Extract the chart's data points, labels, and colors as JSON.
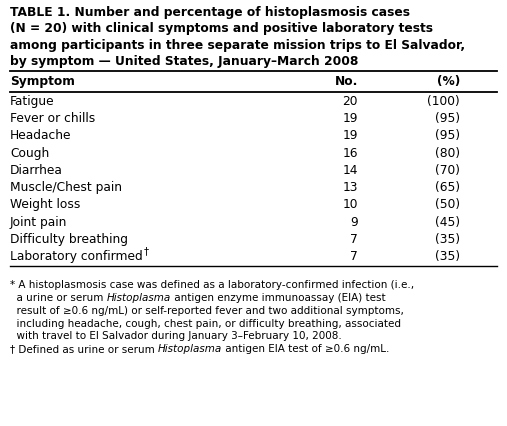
{
  "title_lines": [
    "TABLE 1. Number and percentage of histoplasmosis cases",
    "(N = 20) with clinical symptoms and positive laboratory tests",
    "among participants in three separate mission trips to El Salvador,",
    "by symptom — United States, January–March 2008"
  ],
  "col_headers": [
    "Symptom",
    "No.",
    "(%)"
  ],
  "rows": [
    [
      "Fatigue",
      "20",
      "(100)"
    ],
    [
      "Fever or chills",
      "19",
      "(95)"
    ],
    [
      "Headache",
      "19",
      "(95)"
    ],
    [
      "Cough",
      "16",
      "(80)"
    ],
    [
      "Diarrhea",
      "14",
      "(70)"
    ],
    [
      "Muscle/Chest pain",
      "13",
      "(65)"
    ],
    [
      "Weight loss",
      "10",
      "(50)"
    ],
    [
      "Joint pain",
      "9",
      "(45)"
    ],
    [
      "Difficulty breathing",
      "7",
      "(35)"
    ],
    [
      "Laboratory confirmed†",
      "7",
      "(35)"
    ]
  ],
  "footnotes": [
    {
      "parts": [
        {
          "text": "* A histoplasmosis case was defined as a laboratory-confirmed infection (i.e.,",
          "italic": false
        }
      ]
    },
    {
      "parts": [
        {
          "text": "  a urine or serum ",
          "italic": false
        },
        {
          "text": "Histoplasma",
          "italic": true
        },
        {
          "text": " antigen enzyme immunoassay (EIA) test",
          "italic": false
        }
      ]
    },
    {
      "parts": [
        {
          "text": "  result of ≥0.6 ng/mL) or self-reported fever and two additional symptoms,",
          "italic": false
        }
      ]
    },
    {
      "parts": [
        {
          "text": "  including headache, cough, chest pain, or difficulty breathing, associated",
          "italic": false
        }
      ]
    },
    {
      "parts": [
        {
          "text": "  with travel to El Salvador during January 3–February 10, 2008.",
          "italic": false
        }
      ]
    },
    {
      "parts": [
        {
          "text": "† Defined as urine or serum ",
          "italic": false
        },
        {
          "text": "Histoplasma",
          "italic": true
        },
        {
          "text": " antigen EIA test of ≥0.6 ng/mL.",
          "italic": false
        }
      ]
    }
  ],
  "bg_color": "#ffffff",
  "text_color": "#000000",
  "title_fontsize": 8.8,
  "header_fontsize": 8.8,
  "row_fontsize": 8.8,
  "footnote_fontsize": 7.5
}
